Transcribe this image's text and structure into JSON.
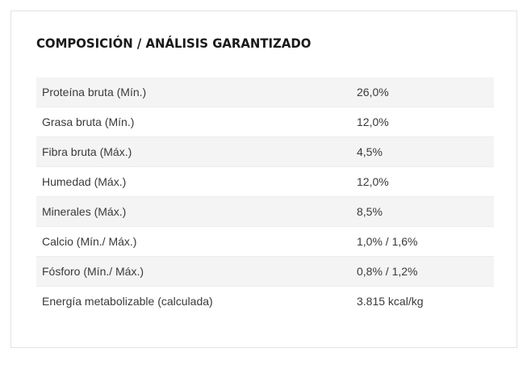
{
  "section": {
    "title": "COMPOSICIÓN / ANÁLISIS GARANTIZADO"
  },
  "table": {
    "rows": [
      {
        "label": "Proteína bruta (Mín.)",
        "value": "26,0%"
      },
      {
        "label": "Grasa bruta (Mín.)",
        "value": "12,0%"
      },
      {
        "label": "Fibra bruta (Máx.)",
        "value": "4,5%"
      },
      {
        "label": "Humedad (Máx.)",
        "value": "12,0%"
      },
      {
        "label": "Minerales (Máx.)",
        "value": "8,5%"
      },
      {
        "label": "Calcio (Mín./ Máx.)",
        "value": "1,0% / 1,6%"
      },
      {
        "label": "Fósforo (Mín./ Máx.)",
        "value": "0,8% / 1,2%"
      },
      {
        "label": "Energía metabolizable (calculada)",
        "value": "3.815 kcal/kg"
      }
    ]
  },
  "colors": {
    "row_shade": "#f4f4f4",
    "text": "#3a3a3a",
    "title": "#1a1a1a"
  }
}
